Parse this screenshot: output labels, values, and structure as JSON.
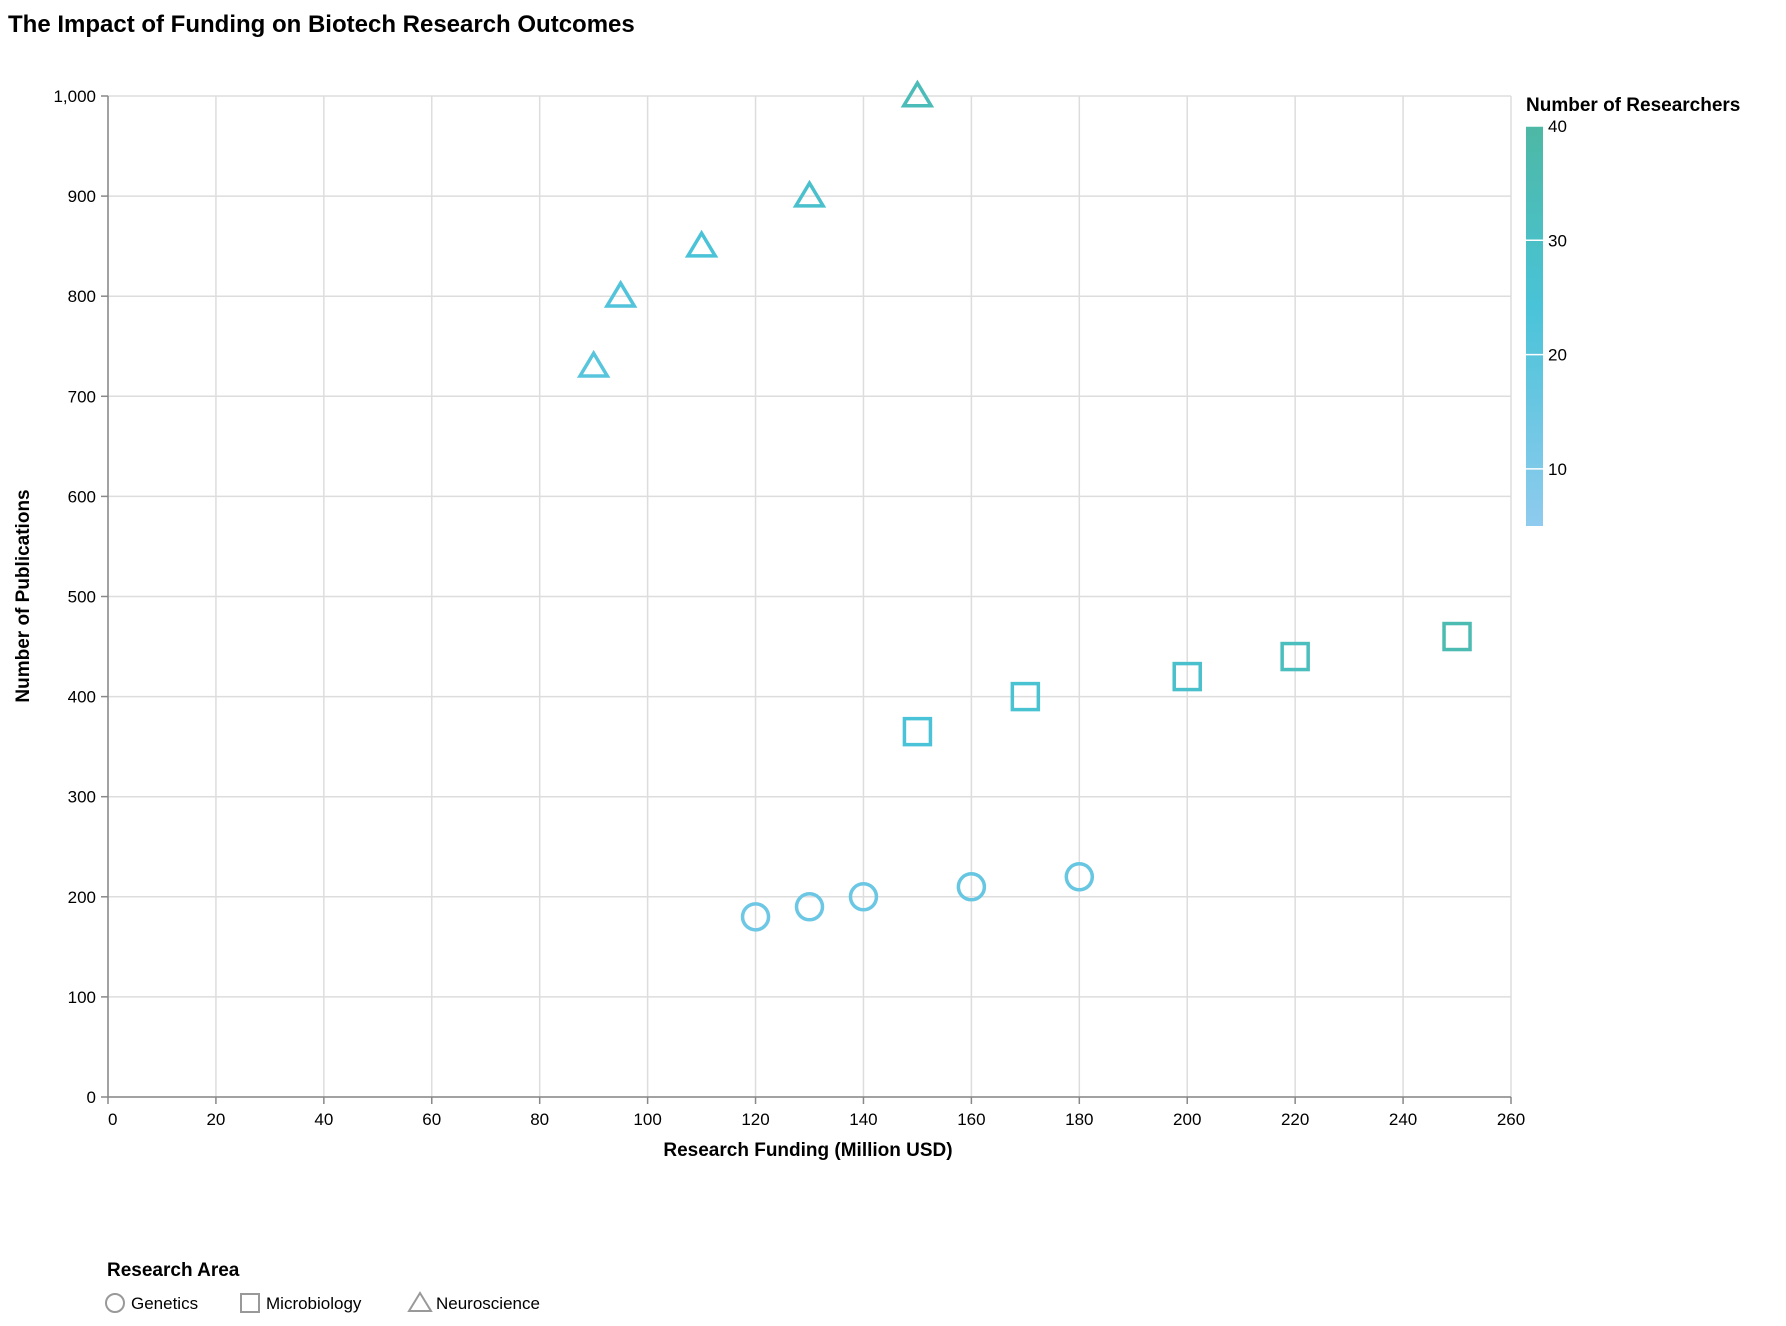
{
  "chart_data": {
    "type": "scatter",
    "title": "The Impact of Funding on Biotech Research Outcomes",
    "xlabel": "Research Funding (Million USD)",
    "ylabel": "Number of Publications",
    "xlim": [
      0,
      260
    ],
    "ylim": [
      0,
      1000
    ],
    "x_ticks": [
      0,
      20,
      40,
      60,
      80,
      100,
      120,
      140,
      160,
      180,
      200,
      220,
      240,
      260
    ],
    "y_ticks": [
      0,
      100,
      200,
      300,
      400,
      500,
      600,
      700,
      800,
      900,
      1000
    ],
    "y_tick_labels": [
      "0",
      "100",
      "200",
      "300",
      "400",
      "500",
      "600",
      "700",
      "800",
      "900",
      "1,000"
    ],
    "grid": true,
    "shape_legend": {
      "title": "Research Area",
      "placement": "bottom-left",
      "entries": [
        {
          "name": "Genetics",
          "shape": "circle"
        },
        {
          "name": "Microbiology",
          "shape": "square"
        },
        {
          "name": "Neuroscience",
          "shape": "triangle"
        }
      ]
    },
    "color_legend": {
      "title": "Number of Researchers",
      "placement": "right",
      "domain": [
        5,
        40
      ],
      "ticks": [
        10,
        20,
        30,
        40
      ],
      "color_low": "#8fcbee",
      "color_mid": "#49c3d8",
      "color_high": "#4db8a4"
    },
    "series": [
      {
        "name": "Genetics",
        "shape": "circle",
        "points": [
          {
            "x": 120,
            "y": 180,
            "researchers": 14
          },
          {
            "x": 130,
            "y": 190,
            "researchers": 15
          },
          {
            "x": 140,
            "y": 200,
            "researchers": 15
          },
          {
            "x": 160,
            "y": 210,
            "researchers": 16
          },
          {
            "x": 180,
            "y": 220,
            "researchers": 16
          }
        ]
      },
      {
        "name": "Microbiology",
        "shape": "square",
        "points": [
          {
            "x": 150,
            "y": 365,
            "researchers": 24
          },
          {
            "x": 170,
            "y": 400,
            "researchers": 26
          },
          {
            "x": 200,
            "y": 420,
            "researchers": 28
          },
          {
            "x": 220,
            "y": 440,
            "researchers": 32
          },
          {
            "x": 250,
            "y": 460,
            "researchers": 36
          }
        ]
      },
      {
        "name": "Neuroscience",
        "shape": "triangle",
        "points": [
          {
            "x": 90,
            "y": 730,
            "researchers": 20
          },
          {
            "x": 95,
            "y": 800,
            "researchers": 22
          },
          {
            "x": 110,
            "y": 850,
            "researchers": 24
          },
          {
            "x": 130,
            "y": 900,
            "researchers": 28
          },
          {
            "x": 150,
            "y": 1000,
            "researchers": 34
          }
        ]
      }
    ]
  }
}
